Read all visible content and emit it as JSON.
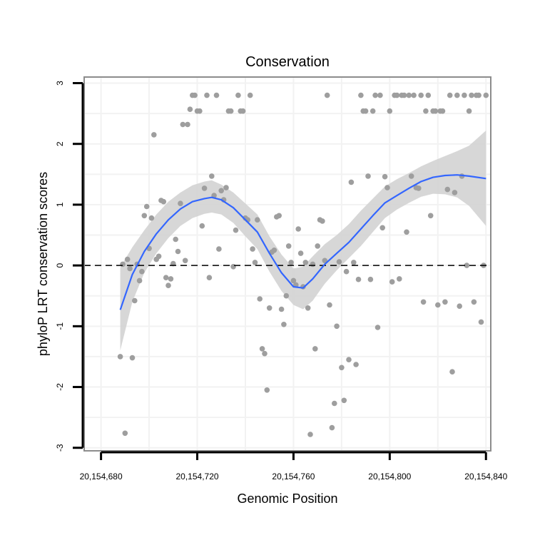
{
  "chart_data": {
    "type": "scatter",
    "title": "Conservation",
    "xlabel": "Genomic Position",
    "ylabel": "phyloP LRT conservation scores",
    "xlim": [
      20154673,
      20154842
    ],
    "ylim": [
      -3.05,
      3.1
    ],
    "x_ticks": [
      20154680,
      20154720,
      20154760,
      20154800,
      20154840
    ],
    "x_tick_labels": [
      "20,154,680",
      "20,154,720",
      "20,154,760",
      "20,154,800",
      "20,154,840"
    ],
    "y_ticks": [
      -3,
      -2,
      -1,
      0,
      1,
      2,
      3
    ],
    "y_tick_labels": [
      "-3",
      "-2",
      "-1",
      "0",
      "1",
      "2",
      "3"
    ],
    "grid": true,
    "reference_line": {
      "y": 0,
      "style": "dashed"
    },
    "colors": {
      "points": "#9e9e9e",
      "smooth_line": "#3366ff",
      "confidence_band": "#d3d3d3",
      "grid": "#f2f2f2",
      "frame": "#8c8c8c"
    },
    "series": [
      {
        "name": "scores",
        "points": [
          [
            20154688,
            -1.5
          ],
          [
            20154689,
            0.02
          ],
          [
            20154690,
            -2.76
          ],
          [
            20154691,
            0.1
          ],
          [
            20154692,
            -0.05
          ],
          [
            20154693,
            -1.52
          ],
          [
            20154694,
            -0.58
          ],
          [
            20154695,
            0.02
          ],
          [
            20154696,
            -0.25
          ],
          [
            20154697,
            -0.1
          ],
          [
            20154698,
            0.82
          ],
          [
            20154699,
            0.97
          ],
          [
            20154700,
            0.28
          ],
          [
            20154701,
            0.78
          ],
          [
            20154702,
            2.15
          ],
          [
            20154703,
            0.1
          ],
          [
            20154704,
            0.15
          ],
          [
            20154705,
            1.07
          ],
          [
            20154706,
            1.05
          ],
          [
            20154707,
            -0.2
          ],
          [
            20154708,
            -0.33
          ],
          [
            20154709,
            -0.22
          ],
          [
            20154710,
            0.03
          ],
          [
            20154711,
            0.43
          ],
          [
            20154712,
            0.23
          ],
          [
            20154713,
            1.02
          ],
          [
            20154714,
            2.32
          ],
          [
            20154715,
            0.08
          ],
          [
            20154716,
            2.32
          ],
          [
            20154717,
            2.57
          ],
          [
            20154718,
            2.8
          ],
          [
            20154719,
            2.8
          ],
          [
            20154720,
            2.54
          ],
          [
            20154721,
            2.54
          ],
          [
            20154722,
            0.65
          ],
          [
            20154723,
            1.27
          ],
          [
            20154724,
            2.8
          ],
          [
            20154725,
            -0.2
          ],
          [
            20154726,
            1.47
          ],
          [
            20154727,
            1.15
          ],
          [
            20154728,
            2.8
          ],
          [
            20154729,
            0.27
          ],
          [
            20154730,
            1.23
          ],
          [
            20154731,
            1.08
          ],
          [
            20154732,
            1.28
          ],
          [
            20154733,
            2.54
          ],
          [
            20154734,
            2.54
          ],
          [
            20154735,
            -0.02
          ],
          [
            20154736,
            0.58
          ],
          [
            20154737,
            2.8
          ],
          [
            20154738,
            2.54
          ],
          [
            20154739,
            2.54
          ],
          [
            20154740,
            0.78
          ],
          [
            20154741,
            0.75
          ],
          [
            20154742,
            2.8
          ],
          [
            20154743,
            0.27
          ],
          [
            20154744,
            0.05
          ],
          [
            20154745,
            0.75
          ],
          [
            20154746,
            -0.55
          ],
          [
            20154747,
            -1.37
          ],
          [
            20154748,
            -1.45
          ],
          [
            20154749,
            -2.05
          ],
          [
            20154750,
            -0.7
          ],
          [
            20154751,
            0.22
          ],
          [
            20154752,
            0.25
          ],
          [
            20154753,
            0.8
          ],
          [
            20154754,
            0.82
          ],
          [
            20154755,
            -0.72
          ],
          [
            20154756,
            -0.97
          ],
          [
            20154757,
            -0.5
          ],
          [
            20154758,
            0.32
          ],
          [
            20154759,
            0.05
          ],
          [
            20154760,
            -0.25
          ],
          [
            20154761,
            -0.32
          ],
          [
            20154762,
            0.6
          ],
          [
            20154763,
            0.2
          ],
          [
            20154764,
            -0.35
          ],
          [
            20154765,
            0.05
          ],
          [
            20154766,
            -0.7
          ],
          [
            20154767,
            -2.78
          ],
          [
            20154768,
            0.02
          ],
          [
            20154769,
            -1.37
          ],
          [
            20154770,
            0.32
          ],
          [
            20154771,
            0.75
          ],
          [
            20154772,
            0.73
          ],
          [
            20154773,
            0.08
          ],
          [
            20154774,
            2.8
          ],
          [
            20154775,
            -0.65
          ],
          [
            20154776,
            -2.67
          ],
          [
            20154777,
            -2.27
          ],
          [
            20154778,
            -1.0
          ],
          [
            20154779,
            0.06
          ],
          [
            20154780,
            -1.68
          ],
          [
            20154781,
            -2.22
          ],
          [
            20154782,
            -0.1
          ],
          [
            20154783,
            -1.55
          ],
          [
            20154784,
            1.37
          ],
          [
            20154785,
            0.05
          ],
          [
            20154786,
            -1.63
          ],
          [
            20154787,
            -0.23
          ],
          [
            20154788,
            2.8
          ],
          [
            20154789,
            2.54
          ],
          [
            20154790,
            2.54
          ],
          [
            20154791,
            1.47
          ],
          [
            20154792,
            -0.23
          ],
          [
            20154793,
            2.54
          ],
          [
            20154794,
            2.8
          ],
          [
            20154795,
            -1.02
          ],
          [
            20154796,
            2.8
          ],
          [
            20154797,
            0.62
          ],
          [
            20154798,
            1.46
          ],
          [
            20154799,
            1.28
          ],
          [
            20154800,
            2.54
          ],
          [
            20154801,
            -0.27
          ],
          [
            20154802,
            2.8
          ],
          [
            20154803,
            2.8
          ],
          [
            20154804,
            -0.22
          ],
          [
            20154805,
            2.8
          ],
          [
            20154806,
            2.8
          ],
          [
            20154807,
            0.55
          ],
          [
            20154808,
            2.8
          ],
          [
            20154809,
            1.47
          ],
          [
            20154810,
            2.8
          ],
          [
            20154811,
            1.28
          ],
          [
            20154812,
            1.27
          ],
          [
            20154813,
            2.8
          ],
          [
            20154814,
            -0.6
          ],
          [
            20154815,
            2.54
          ],
          [
            20154816,
            2.8
          ],
          [
            20154817,
            0.82
          ],
          [
            20154818,
            2.54
          ],
          [
            20154819,
            2.54
          ],
          [
            20154820,
            -0.65
          ],
          [
            20154821,
            2.54
          ],
          [
            20154822,
            2.54
          ],
          [
            20154823,
            -0.6
          ],
          [
            20154824,
            1.25
          ],
          [
            20154825,
            2.8
          ],
          [
            20154826,
            -1.75
          ],
          [
            20154827,
            1.2
          ],
          [
            20154828,
            2.8
          ],
          [
            20154829,
            -0.67
          ],
          [
            20154830,
            1.47
          ],
          [
            20154831,
            2.8
          ],
          [
            20154832,
            0.0
          ],
          [
            20154833,
            2.54
          ],
          [
            20154834,
            2.8
          ],
          [
            20154835,
            -0.6
          ],
          [
            20154836,
            2.8
          ],
          [
            20154837,
            2.8
          ],
          [
            20154838,
            -0.93
          ],
          [
            20154839,
            0.0
          ],
          [
            20154840,
            2.8
          ]
        ]
      }
    ],
    "smooth": {
      "method": "loess",
      "x": [
        20154688,
        20154693,
        20154698,
        20154703,
        20154708,
        20154713,
        20154718,
        20154723,
        20154726,
        20154730,
        20154735,
        20154740,
        20154745,
        20154750,
        20154755,
        20154760,
        20154764,
        20154768,
        20154773,
        20154778,
        20154783,
        20154788,
        20154793,
        20154798,
        20154803,
        20154808,
        20154813,
        20154818,
        20154823,
        20154828,
        20154833,
        20154840
      ],
      "fit": [
        -0.73,
        -0.15,
        0.23,
        0.52,
        0.75,
        0.93,
        1.05,
        1.1,
        1.12,
        1.08,
        0.95,
        0.75,
        0.55,
        0.2,
        -0.12,
        -0.35,
        -0.37,
        -0.22,
        0.02,
        0.2,
        0.38,
        0.6,
        0.82,
        1.03,
        1.15,
        1.27,
        1.38,
        1.45,
        1.48,
        1.49,
        1.47,
        1.43
      ],
      "lower": [
        -1.4,
        -0.6,
        -0.12,
        0.2,
        0.45,
        0.65,
        0.78,
        0.85,
        0.87,
        0.84,
        0.7,
        0.48,
        0.27,
        -0.1,
        -0.42,
        -0.65,
        -0.72,
        -0.58,
        -0.3,
        -0.08,
        0.12,
        0.32,
        0.55,
        0.78,
        0.92,
        1.03,
        1.13,
        1.18,
        1.17,
        1.12,
        0.98,
        0.65
      ],
      "upper": [
        -0.03,
        0.3,
        0.58,
        0.84,
        1.05,
        1.2,
        1.32,
        1.38,
        1.4,
        1.33,
        1.2,
        1.02,
        0.84,
        0.48,
        0.18,
        -0.05,
        -0.02,
        0.15,
        0.35,
        0.5,
        0.68,
        0.9,
        1.1,
        1.3,
        1.42,
        1.52,
        1.63,
        1.72,
        1.8,
        1.88,
        1.97,
        2.22
      ]
    }
  }
}
